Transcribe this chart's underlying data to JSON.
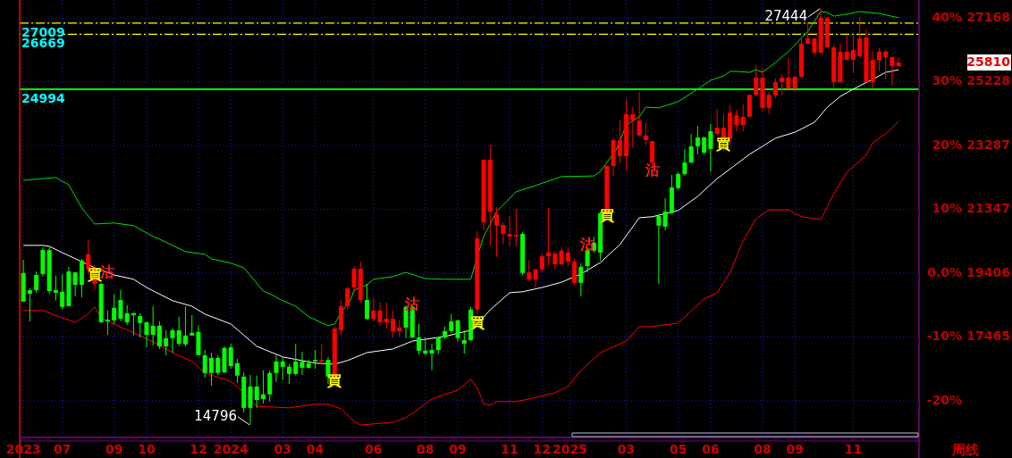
{
  "chart_data": {
    "type": "candlestick",
    "xlabel": "周线",
    "x": [
      "2023-05-22",
      "2023-05-29",
      "2023-06-05",
      "2023-06-12",
      "2023-06-19",
      "2023-06-26",
      "2023-07-03",
      "2023-07-10",
      "2023-07-17",
      "2023-07-24",
      "2023-07-31",
      "2023-08-07",
      "2023-08-14",
      "2023-08-21",
      "2023-08-28",
      "2023-09-04",
      "2023-09-11",
      "2023-09-18",
      "2023-09-25",
      "2023-10-02",
      "2023-10-09",
      "2023-10-16",
      "2023-10-23",
      "2023-10-30",
      "2023-11-06",
      "2023-11-13",
      "2023-11-20",
      "2023-11-27",
      "2023-12-04",
      "2023-12-11",
      "2023-12-18",
      "2023-12-25",
      "2024-01-01",
      "2024-01-08",
      "2024-01-15",
      "2024-01-22",
      "2024-01-29",
      "2024-02-05",
      "2024-02-12",
      "2024-02-19",
      "2024-02-26",
      "2024-03-04",
      "2024-03-11",
      "2024-03-18",
      "2024-03-25",
      "2024-04-01",
      "2024-04-08",
      "2024-04-15",
      "2024-04-22",
      "2024-04-29",
      "2024-05-06",
      "2024-05-13",
      "2024-05-20",
      "2024-05-27",
      "2024-06-03",
      "2024-06-10",
      "2024-06-17",
      "2024-06-24",
      "2024-07-01",
      "2024-07-08",
      "2024-07-15",
      "2024-07-22",
      "2024-07-29",
      "2024-08-05",
      "2024-08-12",
      "2024-08-19",
      "2024-08-26",
      "2024-09-02",
      "2024-09-09",
      "2024-09-16",
      "2024-09-23",
      "2024-09-30",
      "2024-10-07",
      "2024-10-14",
      "2024-10-21",
      "2024-10-28",
      "2024-11-04",
      "2024-11-11",
      "2024-11-18",
      "2024-11-25",
      "2024-12-02",
      "2024-12-09",
      "2024-12-16",
      "2024-12-23",
      "2024-12-30",
      "2025-01-06",
      "2025-01-13",
      "2025-01-20",
      "2025-01-27",
      "2025-02-03",
      "2025-02-10",
      "2025-02-17",
      "2025-02-24",
      "2025-03-03",
      "2025-03-10",
      "2025-03-17",
      "2025-03-24",
      "2025-03-31",
      "2025-04-07",
      "2025-04-14",
      "2025-04-21",
      "2025-04-28",
      "2025-05-05",
      "2025-05-12",
      "2025-05-19",
      "2025-05-26",
      "2025-06-02",
      "2025-06-09",
      "2025-06-16",
      "2025-06-23",
      "2025-06-30",
      "2025-07-07",
      "2025-07-14",
      "2025-07-21",
      "2025-07-28",
      "2025-08-04",
      "2025-08-11",
      "2025-08-18",
      "2025-08-25",
      "2025-09-01",
      "2025-09-08",
      "2025-09-15",
      "2025-09-22",
      "2025-09-29",
      "2025-10-06",
      "2025-10-13",
      "2025-10-20",
      "2025-10-27",
      "2025-11-03",
      "2025-11-10",
      "2025-11-17",
      "2025-11-24",
      "2025-12-01",
      "2025-12-08",
      "2025-12-15",
      "2025-12-22"
    ],
    "ohlc": [
      [
        19410,
        19810,
        18540,
        18540
      ],
      [
        18890,
        18940,
        17940,
        18780
      ],
      [
        19350,
        19460,
        18810,
        18890
      ],
      [
        20110,
        20190,
        19300,
        19380
      ],
      [
        20110,
        20190,
        18780,
        18860
      ],
      [
        18890,
        19330,
        18570,
        18810
      ],
      [
        18840,
        19380,
        18300,
        18380
      ],
      [
        19460,
        19600,
        18400,
        18400
      ],
      [
        19430,
        19430,
        18700,
        19050
      ],
      [
        19790,
        19840,
        18670,
        19050
      ],
      [
        19520,
        20410,
        19380,
        19980
      ],
      [
        19080,
        19650,
        18890,
        19520
      ],
      [
        19080,
        19110,
        17890,
        17910
      ],
      [
        17990,
        18270,
        17530,
        17940
      ],
      [
        18350,
        18760,
        17860,
        17970
      ],
      [
        18590,
        18890,
        17940,
        18020
      ],
      [
        18190,
        18430,
        17830,
        17910
      ],
      [
        18190,
        18190,
        17510,
        18130
      ],
      [
        18100,
        18190,
        17450,
        17890
      ],
      [
        17910,
        17940,
        17150,
        17530
      ],
      [
        17810,
        18400,
        17210,
        17530
      ],
      [
        17810,
        17940,
        17100,
        17180
      ],
      [
        17430,
        17670,
        16910,
        17180
      ],
      [
        17670,
        17720,
        16990,
        17430
      ],
      [
        17670,
        18080,
        17180,
        17260
      ],
      [
        17510,
        18400,
        17180,
        17240
      ],
      [
        17590,
        18130,
        17510,
        17510
      ],
      [
        17620,
        17810,
        16910,
        16910
      ],
      [
        16910,
        17070,
        16230,
        16370
      ],
      [
        16830,
        16990,
        15990,
        16370
      ],
      [
        16830,
        16910,
        16310,
        16370
      ],
      [
        17130,
        17180,
        16370,
        16390
      ],
      [
        17150,
        17260,
        16500,
        16580
      ],
      [
        16670,
        16800,
        16070,
        16290
      ],
      [
        16260,
        16390,
        15170,
        15310
      ],
      [
        15960,
        16310,
        14796,
        15310
      ],
      [
        15960,
        16290,
        15310,
        15550
      ],
      [
        15720,
        16450,
        15440,
        15580
      ],
      [
        16370,
        16450,
        15500,
        15720
      ],
      [
        16720,
        16910,
        16100,
        16370
      ],
      [
        16720,
        16860,
        16150,
        16560
      ],
      [
        16560,
        16640,
        16040,
        16340
      ],
      [
        16720,
        17260,
        16290,
        16340
      ],
      [
        16720,
        17020,
        16310,
        16530
      ],
      [
        16670,
        16770,
        16500,
        16530
      ],
      [
        16770,
        17070,
        16500,
        16720
      ],
      [
        16720,
        17240,
        16640,
        16770
      ],
      [
        16770,
        16860,
        16040,
        16260
      ],
      [
        16260,
        17780,
        16120,
        17720
      ],
      [
        17670,
        18590,
        17530,
        18400
      ],
      [
        18400,
        19000,
        18300,
        18940
      ],
      [
        18970,
        19620,
        18780,
        19540
      ],
      [
        18590,
        19760,
        18510,
        19540
      ],
      [
        18590,
        19080,
        17990,
        18020
      ],
      [
        18020,
        18650,
        17940,
        18270
      ],
      [
        17910,
        18510,
        17810,
        18270
      ],
      [
        17910,
        18510,
        17720,
        18020
      ],
      [
        17640,
        18270,
        17450,
        18020
      ],
      [
        17640,
        17990,
        17480,
        17750
      ],
      [
        18380,
        18430,
        17430,
        17750
      ],
      [
        18380,
        18430,
        17430,
        17450
      ],
      [
        17450,
        17860,
        16940,
        17050
      ],
      [
        17050,
        17450,
        16910,
        16960
      ],
      [
        17070,
        17260,
        16450,
        16960
      ],
      [
        17450,
        17480,
        16940,
        17070
      ],
      [
        17640,
        17780,
        17400,
        17450
      ],
      [
        17940,
        18160,
        17590,
        17640
      ],
      [
        17970,
        17990,
        17320,
        17430
      ],
      [
        17370,
        17670,
        16960,
        17260
      ],
      [
        18300,
        18380,
        17340,
        17370
      ],
      [
        18300,
        20680,
        18160,
        20470
      ],
      [
        20950,
        22880,
        20710,
        22850
      ],
      [
        21280,
        23310,
        20250,
        22850
      ],
      [
        20850,
        21410,
        19900,
        21200
      ],
      [
        20600,
        20950,
        20300,
        20870
      ],
      [
        20520,
        21140,
        20220,
        20600
      ],
      [
        20520,
        21360,
        20220,
        20570
      ],
      [
        20600,
        20660,
        19350,
        19410
      ],
      [
        19210,
        19790,
        19160,
        19430
      ],
      [
        19210,
        19520,
        18970,
        19520
      ],
      [
        19520,
        19980,
        19430,
        19920
      ],
      [
        19920,
        21390,
        19650,
        20030
      ],
      [
        19680,
        20090,
        19520,
        20000
      ],
      [
        19680,
        20190,
        19650,
        20090
      ],
      [
        19760,
        20190,
        19620,
        20030
      ],
      [
        19110,
        19840,
        19050,
        19760
      ],
      [
        19600,
        19710,
        18700,
        19110
      ],
      [
        20110,
        20190,
        19430,
        19620
      ],
      [
        20330,
        20520,
        20030,
        20090
      ],
      [
        21230,
        21280,
        19790,
        20030
      ],
      [
        21200,
        22690,
        21120,
        22660
      ],
      [
        22660,
        23480,
        22360,
        23450
      ],
      [
        22960,
        24050,
        22750,
        23450
      ],
      [
        22960,
        24700,
        22530,
        24240
      ],
      [
        24050,
        24450,
        23210,
        24240
      ],
      [
        23590,
        24920,
        23590,
        24050
      ],
      [
        23450,
        23970,
        23310,
        23590
      ],
      [
        22770,
        23420,
        22500,
        23420
      ],
      [
        21140,
        21200,
        19080,
        20850
      ],
      [
        21280,
        21690,
        20710,
        20820
      ],
      [
        22010,
        22390,
        21200,
        21230
      ],
      [
        22420,
        22470,
        21930,
        21990
      ],
      [
        22770,
        23180,
        22360,
        22420
      ],
      [
        23260,
        23640,
        22750,
        22770
      ],
      [
        23530,
        23880,
        23020,
        23260
      ],
      [
        23530,
        23560,
        23020,
        23070
      ],
      [
        23720,
        23940,
        22500,
        23180
      ],
      [
        23640,
        24400,
        23560,
        23830
      ],
      [
        23500,
        24240,
        23120,
        23830
      ],
      [
        23500,
        24510,
        23290,
        24290
      ],
      [
        23910,
        24370,
        23720,
        24210
      ],
      [
        23910,
        24540,
        23720,
        24160
      ],
      [
        24160,
        24830,
        24160,
        24830
      ],
      [
        24830,
        25730,
        24810,
        25350
      ],
      [
        24430,
        25620,
        24320,
        25350
      ],
      [
        24430,
        24920,
        24240,
        24830
      ],
      [
        24810,
        25320,
        24730,
        25210
      ],
      [
        25210,
        25460,
        24810,
        25350
      ],
      [
        25020,
        25950,
        25000,
        25350
      ],
      [
        25020,
        25380,
        24920,
        25380
      ],
      [
        25380,
        26570,
        25320,
        26380
      ],
      [
        26380,
        27030,
        26380,
        26540
      ],
      [
        26110,
        26540,
        26030,
        26540
      ],
      [
        26110,
        27444,
        26080,
        27170
      ],
      [
        26270,
        27200,
        26270,
        27170
      ],
      [
        25210,
        26350,
        25020,
        26270
      ],
      [
        25210,
        26380,
        25190,
        26140
      ],
      [
        25890,
        26630,
        25890,
        26140
      ],
      [
        25890,
        26630,
        25490,
        26190
      ],
      [
        26000,
        27200,
        25950,
        26540
      ],
      [
        25210,
        26820,
        25210,
        26570
      ],
      [
        25210,
        26160,
        25020,
        25890
      ],
      [
        25870,
        26250,
        25540,
        26140
      ],
      [
        25970,
        26190,
        25300,
        26140
      ],
      [
        25700,
        26000,
        25110,
        25970
      ],
      [
        25700,
        25950,
        25650,
        25810
      ]
    ],
    "colors": [
      "#00ff00",
      "#00ff00",
      "#00ff00",
      "#00ff00",
      "#00ff00",
      "#00ff00",
      "#00ff00",
      "#00ff00",
      "#00ff00",
      "#00ff00",
      "#ff0000",
      "#ff0000",
      "#00ff00",
      "#00ff00",
      "#00ff00",
      "#00ff00",
      "#00ff00",
      "#00ff00",
      "#00ff00",
      "#00ff00",
      "#00ff00",
      "#00ff00",
      "#00ff00",
      "#00ff00",
      "#00ff00",
      "#00ff00",
      "#00ff00",
      "#00ff00",
      "#00ff00",
      "#00ff00",
      "#00ff00",
      "#00ff00",
      "#00ff00",
      "#00ff00",
      "#00ff00",
      "#00ff00",
      "#00ff00",
      "#00ff00",
      "#00ff00",
      "#00ff00",
      "#00ff00",
      "#00ff00",
      "#00ff00",
      "#00ff00",
      "#00ff00",
      "#00ff00",
      "#ff0000",
      "#00ff00",
      "#ff0000",
      "#ff0000",
      "#ff0000",
      "#ff0000",
      "#ff0000",
      "#00ff00",
      "#ff0000",
      "#ff0000",
      "#ff0000",
      "#ff0000",
      "#ff0000",
      "#00ff00",
      "#00ff00",
      "#00ff00",
      "#00ff00",
      "#00ff00",
      "#00ff00",
      "#00ff00",
      "#00ff00",
      "#00ff00",
      "#00ff00",
      "#00ff00",
      "#ff0000",
      "#ff0000",
      "#ff0000",
      "#ff0000",
      "#ff0000",
      "#ff0000",
      "#ff0000",
      "#00ff00",
      "#ff0000",
      "#ff0000",
      "#ff0000",
      "#ff0000",
      "#ff0000",
      "#ff0000",
      "#ff0000",
      "#ff0000",
      "#00ff00",
      "#00ff00",
      "#00ff00",
      "#00ff00",
      "#ff0000",
      "#ff0000",
      "#ff0000",
      "#ff0000",
      "#ff0000",
      "#ff0000",
      "#ff0000",
      "#ff0000",
      "#00ff00",
      "#00ff00",
      "#00ff00",
      "#00ff00",
      "#00ff00",
      "#00ff00",
      "#00ff00",
      "#00ff00",
      "#00ff00",
      "#ff0000",
      "#ff0000",
      "#ff0000",
      "#ff0000",
      "#ff0000",
      "#ff0000",
      "#ff0000",
      "#ff0000",
      "#ff0000",
      "#ff0000",
      "#ff0000",
      "#ff0000",
      "#ff0000",
      "#ff0000",
      "#ff0000",
      "#ff0000",
      "#ff0000",
      "#ff0000",
      "#ff0000",
      "#ff0000",
      "#ff0000",
      "#ff0000",
      "#ff0000",
      "#ff0000",
      "#ff0000",
      "#ff0000",
      "#ff0000",
      "#ff0000",
      "#ff0000"
    ],
    "series": [
      {
        "type": "line",
        "color": "#00e000",
        "x": [
          "2023-05-22",
          "2023-06-26",
          "2023-07-10",
          "2023-07-24",
          "2023-08-07",
          "2023-08-28",
          "2023-09-18",
          "2023-10-09",
          "2023-10-16",
          "2023-11-13",
          "2023-12-04",
          "2023-12-11",
          "2024-01-01",
          "2024-01-15",
          "2024-02-05",
          "2024-02-12",
          "2024-02-26",
          "2024-03-11",
          "2024-03-25",
          "2024-04-15",
          "2024-04-22",
          "2024-04-29",
          "2024-05-09",
          "2024-05-13",
          "2024-05-27",
          "2024-06-03",
          "2024-06-24",
          "2024-07-08",
          "2024-07-29",
          "2024-08-19",
          "2024-09-16",
          "2024-09-26",
          "2024-09-30",
          "2024-10-14",
          "2024-11-04",
          "2024-11-25",
          "2024-12-23",
          "2025-01-27",
          "2025-02-03",
          "2025-02-20",
          "2025-03-03",
          "2025-03-17",
          "2025-03-24",
          "2025-04-07",
          "2025-04-28",
          "2025-05-19",
          "2025-06-02",
          "2025-06-16",
          "2025-06-23",
          "2025-06-30",
          "2025-07-14",
          "2025-07-21",
          "2025-07-28",
          "2025-08-11",
          "2025-08-25",
          "2025-09-15",
          "2025-09-29",
          "2025-10-06",
          "2025-10-13",
          "2025-10-27",
          "2025-11-10",
          "2025-12-01",
          "2025-12-22"
        ],
        "values": [
          22230,
          22310,
          22090,
          21390,
          20900,
          20930,
          20850,
          20520,
          20440,
          20060,
          19980,
          19840,
          19710,
          19570,
          18860,
          18780,
          18570,
          18400,
          18080,
          17810,
          17860,
          18210,
          18570,
          18890,
          19050,
          19220,
          19300,
          19430,
          19240,
          19220,
          19220,
          20170,
          20520,
          21280,
          21880,
          22070,
          22340,
          22360,
          22500,
          23150,
          23910,
          24160,
          24450,
          24430,
          24620,
          25000,
          25270,
          25400,
          25540,
          25540,
          25510,
          25590,
          25510,
          25810,
          26140,
          26760,
          27360,
          27330,
          27220,
          27280,
          27360,
          27300,
          27170
        ]
      },
      {
        "type": "line",
        "color": "#ffffff",
        "x": [
          "2023-05-22",
          "2023-06-12",
          "2023-06-19",
          "2023-07-03",
          "2023-08-07",
          "2023-08-21",
          "2023-08-28",
          "2023-09-18",
          "2023-10-02",
          "2023-10-30",
          "2023-11-20",
          "2023-12-04",
          "2024-01-01",
          "2024-01-29",
          "2024-02-26",
          "2024-04-01",
          "2024-04-22",
          "2024-05-06",
          "2024-05-27",
          "2024-06-24",
          "2024-07-15",
          "2024-08-19",
          "2024-09-16",
          "2024-09-23",
          "2024-10-07",
          "2024-10-28",
          "2024-11-11",
          "2024-12-02",
          "2024-12-23",
          "2025-01-13",
          "2025-02-03",
          "2025-02-24",
          "2025-03-17",
          "2025-03-31",
          "2025-04-28",
          "2025-05-19",
          "2025-06-09",
          "2025-06-30",
          "2025-07-14",
          "2025-07-28",
          "2025-08-11",
          "2025-09-01",
          "2025-09-22",
          "2025-10-06",
          "2025-10-20",
          "2025-11-03",
          "2025-11-24",
          "2025-12-08",
          "2025-12-22"
        ],
        "values": [
          20250,
          20250,
          20220,
          20030,
          19570,
          19430,
          19350,
          19220,
          18970,
          18570,
          18400,
          18160,
          17860,
          17180,
          16860,
          16670,
          16640,
          16750,
          16990,
          17100,
          17340,
          17480,
          17670,
          17860,
          18290,
          18810,
          18840,
          18970,
          19130,
          19380,
          19730,
          20270,
          21090,
          21120,
          21310,
          21740,
          22280,
          22720,
          23020,
          23260,
          23510,
          23690,
          23990,
          24450,
          24780,
          25000,
          25300,
          25510,
          25590
        ]
      },
      {
        "type": "line",
        "color": "#ff0000",
        "x": [
          "2023-05-22",
          "2023-06-12",
          "2023-07-03",
          "2023-07-17",
          "2023-07-31",
          "2023-08-07",
          "2023-08-14",
          "2023-08-28",
          "2023-09-18",
          "2023-10-09",
          "2023-10-30",
          "2023-11-20",
          "2023-12-04",
          "2024-01-01",
          "2024-01-15",
          "2024-01-29",
          "2024-03-04",
          "2024-04-01",
          "2024-04-15",
          "2024-04-29",
          "2024-05-13",
          "2024-05-20",
          "2024-06-24",
          "2024-07-08",
          "2024-07-22",
          "2024-08-05",
          "2024-09-02",
          "2024-09-16",
          "2024-09-23",
          "2024-09-30",
          "2024-10-07",
          "2024-10-14",
          "2024-11-04",
          "2024-11-18",
          "2024-12-16",
          "2024-12-30",
          "2025-01-13",
          "2025-02-03",
          "2025-03-03",
          "2025-03-17",
          "2025-03-31",
          "2025-04-28",
          "2025-05-26",
          "2025-06-09",
          "2025-06-23",
          "2025-07-07",
          "2025-07-21",
          "2025-08-04",
          "2025-08-25",
          "2025-09-08",
          "2025-09-29",
          "2025-10-13",
          "2025-10-27",
          "2025-11-17",
          "2025-11-24",
          "2025-12-08",
          "2025-12-22"
        ],
        "values": [
          18270,
          18270,
          18050,
          17910,
          18160,
          18380,
          18050,
          17860,
          17590,
          17320,
          16990,
          16720,
          16370,
          16120,
          15770,
          15360,
          15310,
          15420,
          15420,
          15280,
          14900,
          14790,
          14870,
          15010,
          15280,
          15580,
          15850,
          16180,
          15910,
          15440,
          15390,
          15500,
          15500,
          15580,
          15770,
          15960,
          16450,
          16990,
          17340,
          17780,
          17780,
          17890,
          18620,
          18810,
          19430,
          20380,
          21060,
          21330,
          21330,
          21120,
          21040,
          21820,
          22470,
          22990,
          23370,
          23640,
          24020
        ]
      }
    ],
    "xlim": [
      "2023-05-18",
      "2026-01-13"
    ],
    "xticks": [
      {
        "value": "2023-05-22",
        "label": "2023"
      },
      {
        "value": "2023-07-03",
        "label": "07"
      },
      {
        "value": "2023-08-28",
        "label": "09"
      },
      {
        "value": "2023-10-02",
        "label": "10"
      },
      {
        "value": "2023-11-27",
        "label": "12"
      },
      {
        "value": "2024-01-01",
        "label": "2024"
      },
      {
        "value": "2024-02-26",
        "label": "03"
      },
      {
        "value": "2024-04-01",
        "label": "04"
      },
      {
        "value": "2024-06-03",
        "label": "06"
      },
      {
        "value": "2024-07-29",
        "label": "08"
      },
      {
        "value": "2024-09-02",
        "label": "09"
      },
      {
        "value": "2024-10-28",
        "label": "11"
      },
      {
        "value": "2024-12-02",
        "label": "12"
      },
      {
        "value": "2025-01-01",
        "label": "2025"
      },
      {
        "value": "2025-03-03",
        "label": "03"
      },
      {
        "value": "2025-04-28",
        "label": "05"
      },
      {
        "value": "2025-06-02",
        "label": "06"
      },
      {
        "value": "2025-07-28",
        "label": "08"
      },
      {
        "value": "2025-09-01",
        "label": "09"
      },
      {
        "value": "2025-11-03",
        "label": "11"
      }
    ],
    "ylim": [
      14410,
      27710
    ],
    "yticks": [
      17465,
      19406,
      21347,
      23287,
      25228,
      27168,
      25810
    ],
    "y2lim": [
      -25.74,
      42.79
    ],
    "y2ticks": [
      {
        "value": 40,
        "label": "40%"
      },
      {
        "value": 30,
        "label": "30%"
      },
      {
        "value": 20,
        "label": "20%"
      },
      {
        "value": 10,
        "label": "10%"
      },
      {
        "value": 0,
        "label": "0.0%"
      },
      {
        "value": -10,
        "label": "-10%"
      },
      {
        "value": -20,
        "label": "-20%"
      }
    ],
    "grid": true,
    "ref_lines": [
      {
        "axis": "y",
        "value": 27009,
        "label": "27009",
        "color": "#ffff00",
        "line_style": "dashed"
      },
      {
        "axis": "y",
        "value": 26669,
        "label": "26669",
        "color": "#ffff00",
        "line_style": "dashed"
      },
      {
        "axis": "y",
        "value": 24994,
        "label": "24994",
        "color": "#00ff00",
        "line_style": "solid"
      }
    ],
    "annotations": [
      {
        "text": "買",
        "x": "2023-08-07",
        "y": 19330
      },
      {
        "text": "沽",
        "x": "2023-08-21",
        "y": 19430
      },
      {
        "text": "買",
        "x": "2024-04-22",
        "y": 16120
      },
      {
        "text": "沽",
        "x": "2024-07-15",
        "y": 18430
      },
      {
        "text": "買",
        "x": "2024-09-23",
        "y": 17860
      },
      {
        "text": "沽",
        "x": "2025-01-20",
        "y": 20250
      },
      {
        "text": "買",
        "x": "2025-02-10",
        "y": 21120
      },
      {
        "text": "沽",
        "x": "2025-03-31",
        "y": 22500
      },
      {
        "text": "買",
        "x": "2025-06-16",
        "y": 23310
      },
      {
        "text": "27444",
        "x": "2025-09-29",
        "y": 27444
      },
      {
        "text": "14796",
        "x": "2024-01-22",
        "y": 14796
      }
    ]
  }
}
